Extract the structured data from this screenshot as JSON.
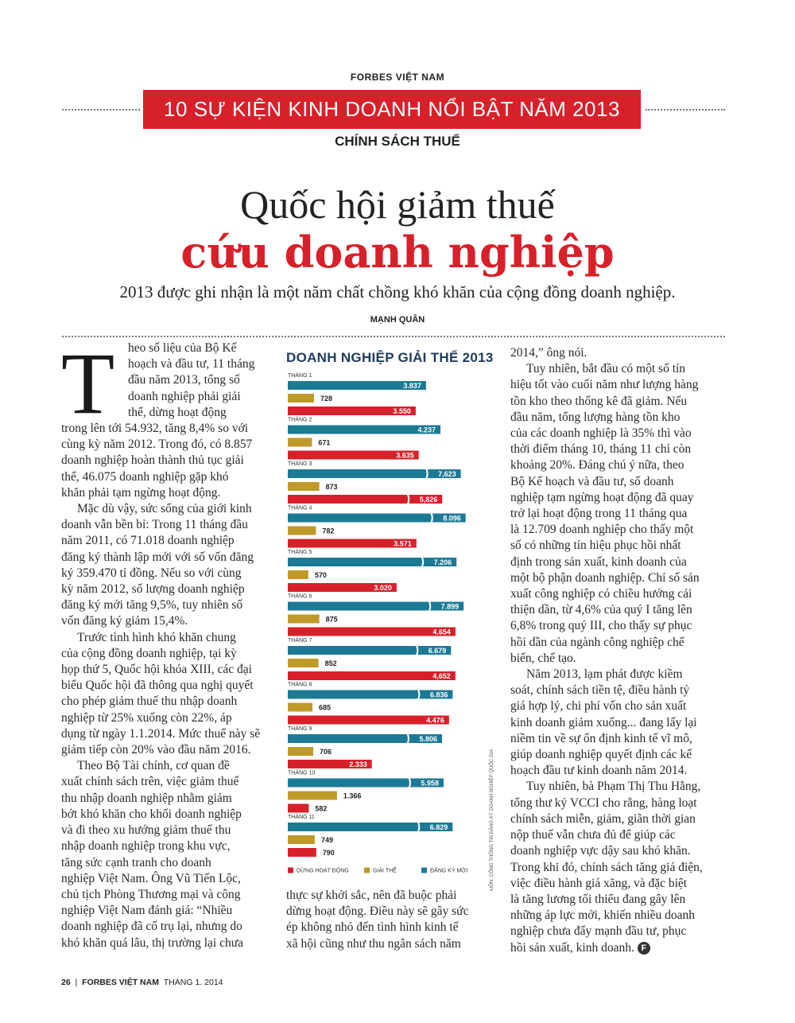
{
  "header": {
    "kicker": "FORBES VIỆT NAM",
    "series_title": "10 SỰ KIỆN KINH DOANH NỔI BẬT NĂM 2013",
    "section": "CHÍNH SÁCH THUẾ"
  },
  "headline": {
    "line1": "Quốc hội giảm thuế",
    "line2": "cứu doanh nghiệp"
  },
  "dek": "2013 được ghi nhận là một năm chất chồng khó khăn của cộng đồng doanh nghiệp.",
  "byline": "MẠNH QUÂN",
  "dropcap": "T",
  "col1": {
    "lines": [
      "heo số liệu của Bộ Kế",
      "hoạch và đầu tư, 11 tháng",
      "đầu năm 2013, tổng số",
      "doanh nghiệp phải giải",
      "thể, dừng hoạt động",
      "trong lên tới 54.932, tăng 8,4% so với",
      "cùng kỳ năm 2012. Trong đó, có 8.857",
      "doanh nghiệp hoàn thành thủ tục giải",
      "thể, 46.075 doanh nghiệp gặp khó",
      "khăn phải tạm ngừng hoạt động.",
      "Mặc dù vậy, sức sống của giới kinh",
      "doanh vẫn bền bỉ: Trong 11 tháng đầu",
      "năm 2011, có  71.018 doanh nghiệp",
      "đăng ký thành lập mới với số vốn đăng",
      "ký 359.470 tỉ đồng. Nếu so với cùng",
      "kỳ năm 2012, số lượng doanh nghiệp",
      "đăng ký mới tăng 9,5%, tuy nhiên số",
      "vốn đăng ký giảm 15,4%.",
      "Trước tình hình khó khăn chung",
      "của cộng đồng doanh nghiệp, tại kỳ",
      "họp thứ 5, Quốc hội khóa XIII, các đại",
      "biểu Quốc hội đã thông qua nghị quyết",
      "cho phép giảm thuế thu nhập doanh",
      "nghiệp từ 25% xuống còn 22%, áp",
      "dụng từ ngày 1.1.2014. Mức thuế này sẽ",
      "giảm tiếp còn 20% vào đầu năm 2016.",
      "Theo Bộ Tài chính, cơ quan đề",
      "xuất chính sách trên, việc giảm thuế",
      "thu nhập doanh nghiệp nhằm giảm",
      "bớt khó khăn cho khối doanh nghiệp",
      "và đi theo xu hướng giảm thuế thu",
      "nhập doanh nghiệp trong khu vực,",
      "tăng sức cạnh tranh cho doanh",
      "nghiệp Việt Nam. Ông Vũ Tiến Lộc,",
      "chủ tịch Phòng Thương mại và công",
      "nghiệp Việt Nam đánh giá: “Nhiều",
      "doanh nghiệp đã cố trụ lại, nhưng do",
      "khó khăn quá lâu, thị trường lại chưa"
    ]
  },
  "col2_bottom": {
    "lines": [
      "thực sự khởi sắc, nên đã buộc phải",
      "dừng hoạt động. Điều này sẽ gây sức",
      "ép không nhỏ đến tình hình kinh tế",
      "xã hội cũng như thu ngân sách năm"
    ]
  },
  "col3": {
    "lines": [
      "2014,” ông nói.",
      "Tuy nhiên, bắt đầu có một số tín",
      "hiệu tốt vào cuối năm như lượng hàng",
      "tồn kho theo thống kê đã giảm. Nếu",
      "đầu năm, tổng lượng hàng tồn kho",
      "của các doanh nghiệp là 35% thì vào",
      "thời điểm tháng 10, tháng 11 chỉ còn",
      "khoảng 20%. Đáng chú ý nữa, theo",
      "Bộ Kế hoạch và đầu tư, số doanh",
      "nghiệp tạm ngừng hoạt động đã quay",
      "trở lại hoạt động trong 11 tháng qua",
      "là 12.709 doanh nghiệp cho thấy một",
      "số có những tín hiệu phục hồi nhất",
      "định trong sản xuất, kinh doanh của",
      "một bộ phận doanh nghiệp. Chỉ số sản",
      "xuất công nghiệp có chiều hướng cải",
      "thiện dần, từ 4,6% của quý I tăng lên",
      "6,8% trong quý III, cho thấy sự phục",
      "hồi dần của ngành công nghiệp chế",
      "biến, chế tạo.",
      "Năm 2013, lạm phát được kiềm",
      "soát, chính sách tiền tệ, điều hành tỷ",
      "giá hợp lý, chi phí vốn cho sản xuất",
      "kinh doanh giảm xuống... đang lấy lại",
      "niềm tin về  sự ổn định kinh tế vĩ mô,",
      "giúp doanh nghiệp quyết định các kế",
      "hoạch đầu tư kinh doanh năm 2014.",
      "Tuy nhiên, bà Phạm Thị Thu Hằng,",
      "tổng thư ký VCCI cho rằng, hàng loạt",
      "chính sách miễn, giảm, giãn thời gian",
      "nộp thuế vẫn chưa đủ để giúp các",
      "doanh nghiệp vực dậy sau khó khăn.",
      "Trong khi đó, chính sách tăng giá điện,",
      "việc điều hành giá xăng, và đặc biệt",
      "là tăng lương tối thiểu đang gây lên",
      "những áp lực mới, khiến nhiều doanh",
      "nghiệp chưa đẩy mạnh đầu tư, phục",
      "hồi sản xuất, kinh doanh."
    ],
    "end_mark": "F"
  },
  "chart_data": {
    "type": "bar",
    "orientation": "horizontal",
    "title": "DOANH NGHIỆP GIẢI THỂ 2013",
    "categories": [
      "THÁNG 1",
      "THÁNG 2",
      "THÁNG 3",
      "THÁNG 4",
      "THÁNG 5",
      "THÁNG 6",
      "THÁNG 7",
      "THÁNG 8",
      "THÁNG 9",
      "THÁNG 10",
      "THÁNG 11"
    ],
    "series": [
      {
        "name": "ĐĂNG KÝ MỚI",
        "color": "#1d7a95",
        "values": [
          3837,
          4237,
          7623,
          8096,
          7206,
          7899,
          6679,
          6836,
          5806,
          5958,
          6829
        ],
        "labels": [
          "3.837",
          "4.237",
          "7,623",
          "8.096",
          "7.206",
          "7.899",
          "6.679",
          "6.836",
          "5.806",
          "5.958",
          "6.829"
        ]
      },
      {
        "name": "GIẢI THỂ",
        "color": "#bf9a2a",
        "values": [
          728,
          671,
          873,
          782,
          570,
          875,
          852,
          685,
          706,
          1366,
          749
        ],
        "labels": [
          "728",
          "671",
          "873",
          "782",
          "570",
          "875",
          "852",
          "685",
          "706",
          "1.366",
          "749"
        ]
      },
      {
        "name": "DỪNG HOẠT ĐỘNG",
        "color": "#d8202a",
        "values": [
          3550,
          3635,
          5826,
          3571,
          3020,
          4654,
          4652,
          4476,
          2333,
          582,
          790
        ],
        "labels": [
          "3.550",
          "3.635",
          "5,826",
          "3.571",
          "3.020",
          "4.654",
          "4,652",
          "4.476",
          "2.333",
          "582",
          "790"
        ]
      }
    ],
    "legend": [
      "DỪNG HOẠT ĐỘNG",
      "GIẢI THỂ",
      "ĐĂNG KÝ MỚI"
    ],
    "legend_placement": "bottom",
    "source": "NGUỒN: CỔNG THÔNG TIN ĐĂNG KÝ DOANH NGHIỆP QUỐC GIA",
    "axis_break_series": "ĐĂNG KÝ MỚI",
    "colors": {
      "red": "#d8202a",
      "gold": "#bf9a2a",
      "teal": "#1d7a95"
    }
  },
  "footer": {
    "page": "26",
    "separator": "|",
    "publication": "FORBES VIỆT NAM",
    "issue": "THÁNG 1. 2014"
  }
}
